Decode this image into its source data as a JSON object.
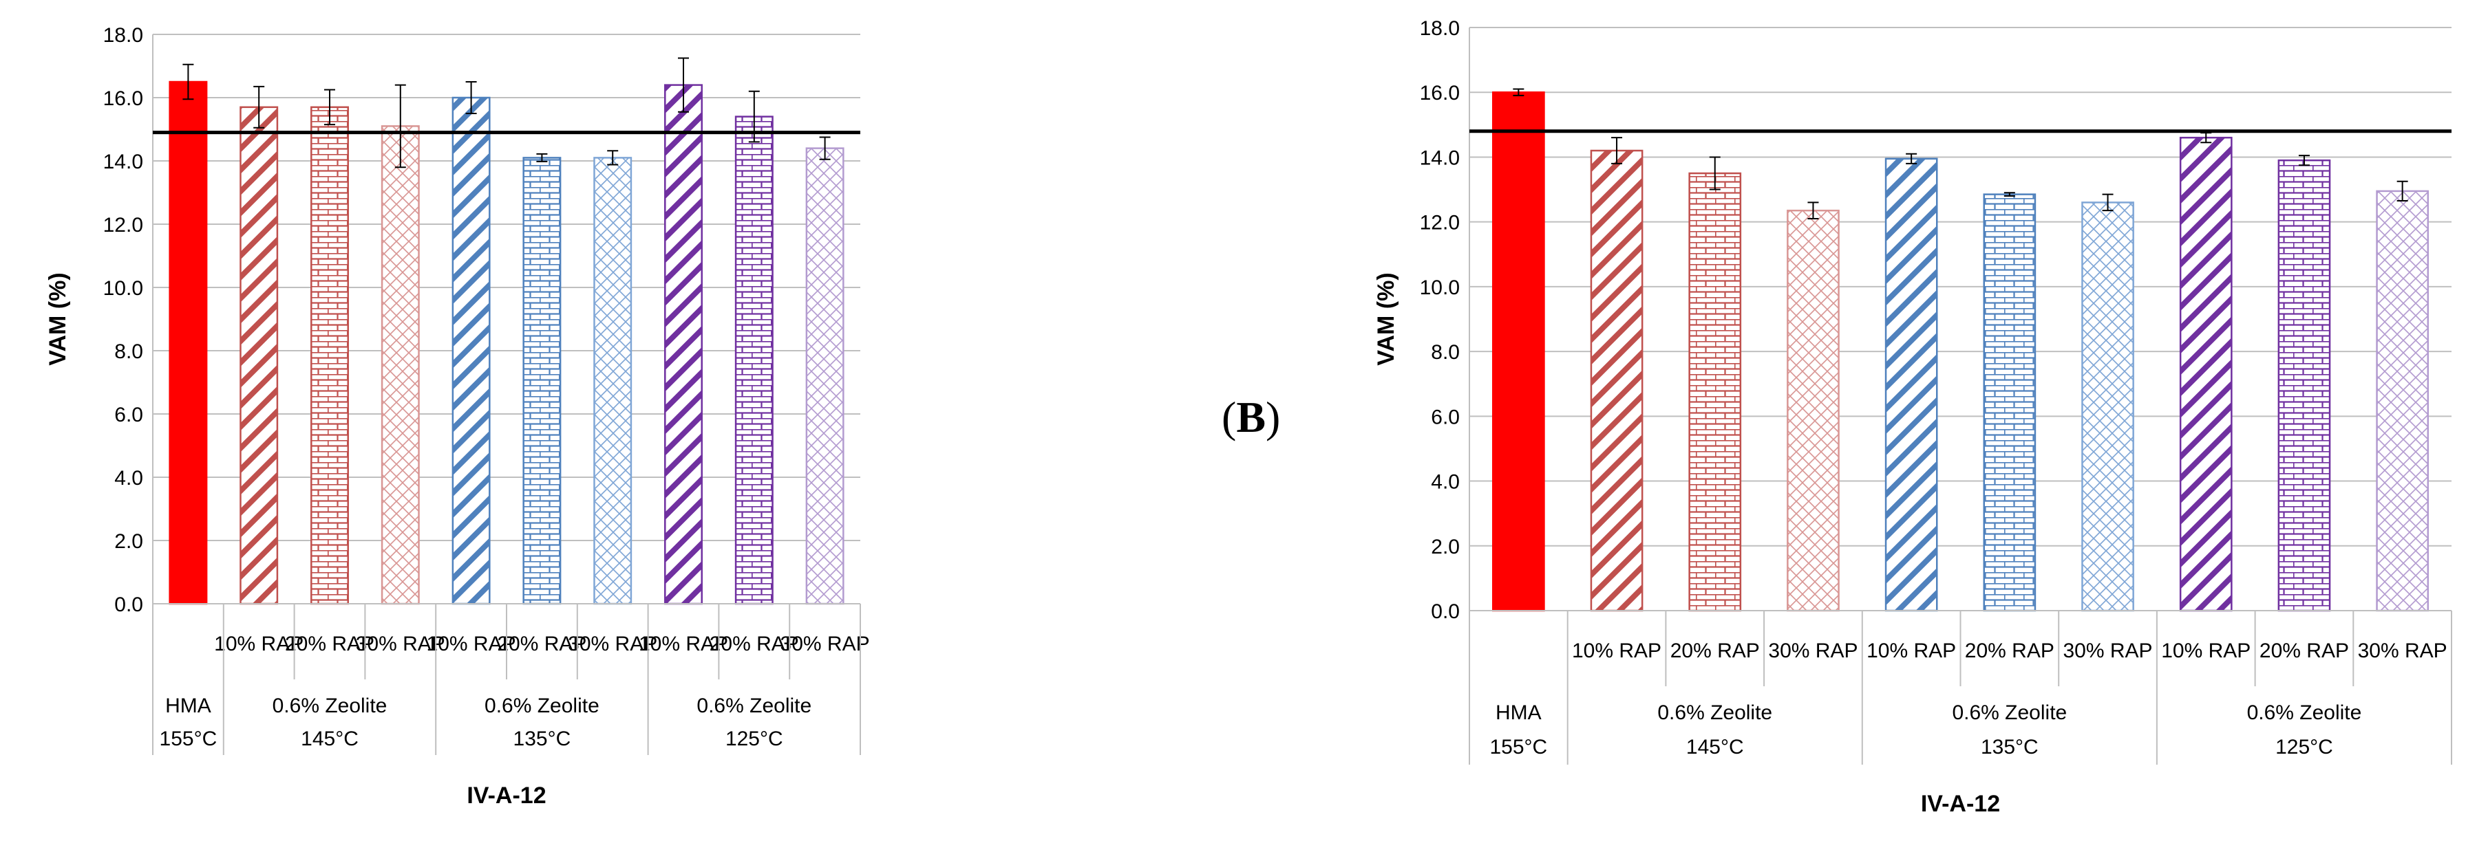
{
  "panel_label": {
    "open": "(",
    "letter": "B",
    "close": ")"
  },
  "chart_data": [
    {
      "type": "bar",
      "title": "",
      "ylabel": "VAM (%)",
      "xlabel": "IV-A-12",
      "ylim": [
        0,
        18
      ],
      "yticks": [
        "0.0",
        "2.0",
        "4.0",
        "6.0",
        "8.0",
        "10.0",
        "12.0",
        "14.0",
        "16.0",
        "18.0"
      ],
      "reference_line": 14.9,
      "categories": [
        {
          "rap": "",
          "mix": "HMA",
          "temp": "155°C"
        },
        {
          "rap": "10% RAP",
          "mix": "0.6% Zeolite",
          "temp": "145°C"
        },
        {
          "rap": "20% RAP",
          "mix": "0.6% Zeolite",
          "temp": "145°C"
        },
        {
          "rap": "30% RAP",
          "mix": "0.6% Zeolite",
          "temp": "145°C"
        },
        {
          "rap": "10% RAP",
          "mix": "0.6% Zeolite",
          "temp": "135°C"
        },
        {
          "rap": "20% RAP",
          "mix": "0.6% Zeolite",
          "temp": "135°C"
        },
        {
          "rap": "30% RAP",
          "mix": "0.6% Zeolite",
          "temp": "135°C"
        },
        {
          "rap": "10% RAP",
          "mix": "0.6% Zeolite",
          "temp": "125°C"
        },
        {
          "rap": "20% RAP",
          "mix": "0.6% Zeolite",
          "temp": "125°C"
        },
        {
          "rap": "30% RAP",
          "mix": "0.6% Zeolite",
          "temp": "125°C"
        }
      ],
      "groups": [
        {
          "mix": "HMA",
          "temp": "155°C"
        },
        {
          "mix": "0.6% Zeolite",
          "temp": "145°C"
        },
        {
          "mix": "0.6% Zeolite",
          "temp": "135°C"
        },
        {
          "mix": "0.6% Zeolite",
          "temp": "125°C"
        }
      ],
      "values": [
        16.5,
        15.7,
        15.7,
        15.1,
        16.0,
        14.1,
        14.1,
        16.4,
        15.4,
        14.4
      ],
      "errors": [
        0.55,
        0.65,
        0.55,
        1.3,
        0.5,
        0.12,
        0.22,
        0.85,
        0.8,
        0.35
      ],
      "patterns": [
        "solid",
        "diag",
        "brick",
        "diamond",
        "diag",
        "brick",
        "diamond",
        "diag",
        "brick",
        "diamond"
      ],
      "colors": [
        "#ff0000",
        "#c0504d",
        "#c0504d",
        "#d99694",
        "#4f81bd",
        "#4f81bd",
        "#7fa6d6",
        "#7030a0",
        "#7030a0",
        "#b39bd0"
      ]
    },
    {
      "type": "bar",
      "title": "",
      "ylabel": "VAM (%)",
      "xlabel": "IV-A-12",
      "ylim": [
        0,
        18
      ],
      "yticks": [
        "0.0",
        "2.0",
        "4.0",
        "6.0",
        "8.0",
        "10.0",
        "12.0",
        "14.0",
        "16.0",
        "18.0"
      ],
      "reference_line": 14.8,
      "categories": [
        {
          "rap": "",
          "mix": "HMA",
          "temp": "155°C"
        },
        {
          "rap": "10% RAP",
          "mix": "0.6% Zeolite",
          "temp": "145°C"
        },
        {
          "rap": "20% RAP",
          "mix": "0.6% Zeolite",
          "temp": "145°C"
        },
        {
          "rap": "30% RAP",
          "mix": "0.6% Zeolite",
          "temp": "145°C"
        },
        {
          "rap": "10% RAP",
          "mix": "0.6% Zeolite",
          "temp": "135°C"
        },
        {
          "rap": "20% RAP",
          "mix": "0.6% Zeolite",
          "temp": "135°C"
        },
        {
          "rap": "30% RAP",
          "mix": "0.6% Zeolite",
          "temp": "135°C"
        },
        {
          "rap": "10% RAP",
          "mix": "0.6% Zeolite",
          "temp": "125°C"
        },
        {
          "rap": "20% RAP",
          "mix": "0.6% Zeolite",
          "temp": "125°C"
        },
        {
          "rap": "30% RAP",
          "mix": "0.6% Zeolite",
          "temp": "125°C"
        }
      ],
      "groups": [
        {
          "mix": "HMA",
          "temp": "155°C"
        },
        {
          "mix": "0.6% Zeolite",
          "temp": "145°C"
        },
        {
          "mix": "0.6% Zeolite",
          "temp": "135°C"
        },
        {
          "mix": "0.6% Zeolite",
          "temp": "125°C"
        }
      ],
      "values": [
        16.0,
        14.2,
        13.5,
        12.35,
        13.95,
        12.85,
        12.6,
        14.6,
        13.9,
        12.95
      ],
      "errors": [
        0.1,
        0.4,
        0.5,
        0.25,
        0.15,
        0.05,
        0.25,
        0.15,
        0.15,
        0.3
      ],
      "patterns": [
        "solid",
        "diag",
        "brick",
        "diamond",
        "diag",
        "brick",
        "diamond",
        "diag",
        "brick",
        "diamond"
      ],
      "colors": [
        "#ff0000",
        "#c0504d",
        "#c0504d",
        "#d99694",
        "#4f81bd",
        "#4f81bd",
        "#7fa6d6",
        "#7030a0",
        "#7030a0",
        "#b39bd0"
      ]
    }
  ]
}
